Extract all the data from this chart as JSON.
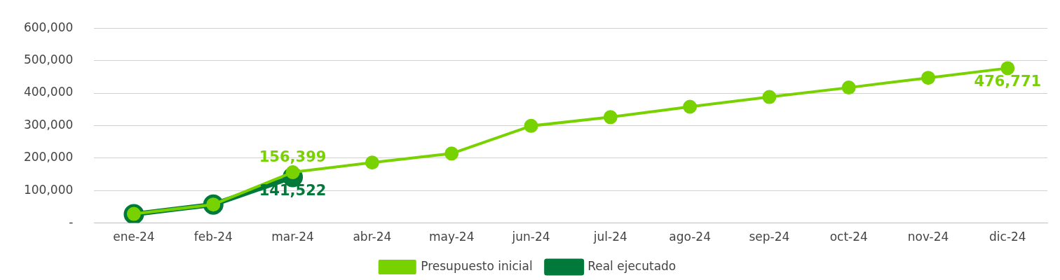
{
  "chart_data": {
    "type": "line",
    "categories": [
      "ene-24",
      "feb-24",
      "mar-24",
      "abr-24",
      "may-24",
      "jun-24",
      "jul-24",
      "ago-24",
      "sep-24",
      "oct-24",
      "nov-24",
      "dic-24"
    ],
    "series": [
      {
        "name": "Real ejecutado",
        "color": "#00793a",
        "values": [
          27000,
          57000,
          141522,
          null,
          null,
          null,
          null,
          null,
          null,
          null,
          null,
          null
        ],
        "value_labels": [
          null,
          null,
          "141,522",
          null,
          null,
          null,
          null,
          null,
          null,
          null,
          null,
          null
        ]
      },
      {
        "name": "Presupuesto inicial",
        "color": "#78d200",
        "values": [
          28000,
          57000,
          156399,
          186000,
          214000,
          299000,
          326000,
          358000,
          388000,
          417000,
          447000,
          476771
        ],
        "value_labels": [
          null,
          null,
          "156,399",
          null,
          null,
          null,
          null,
          null,
          null,
          null,
          null,
          "476,771"
        ]
      }
    ],
    "ylim": [
      0,
      600000
    ],
    "yticks": [
      {
        "value": 0,
        "label": "-"
      },
      {
        "value": 100000,
        "label": "100,000"
      },
      {
        "value": 200000,
        "label": "200,000"
      },
      {
        "value": 300000,
        "label": "300,000"
      },
      {
        "value": 400000,
        "label": "400,000"
      },
      {
        "value": 500000,
        "label": "500,000"
      },
      {
        "value": 600000,
        "label": "600,000"
      }
    ],
    "grid": "y",
    "legend": "bottom",
    "marker": "circle",
    "line_style": "solid"
  }
}
